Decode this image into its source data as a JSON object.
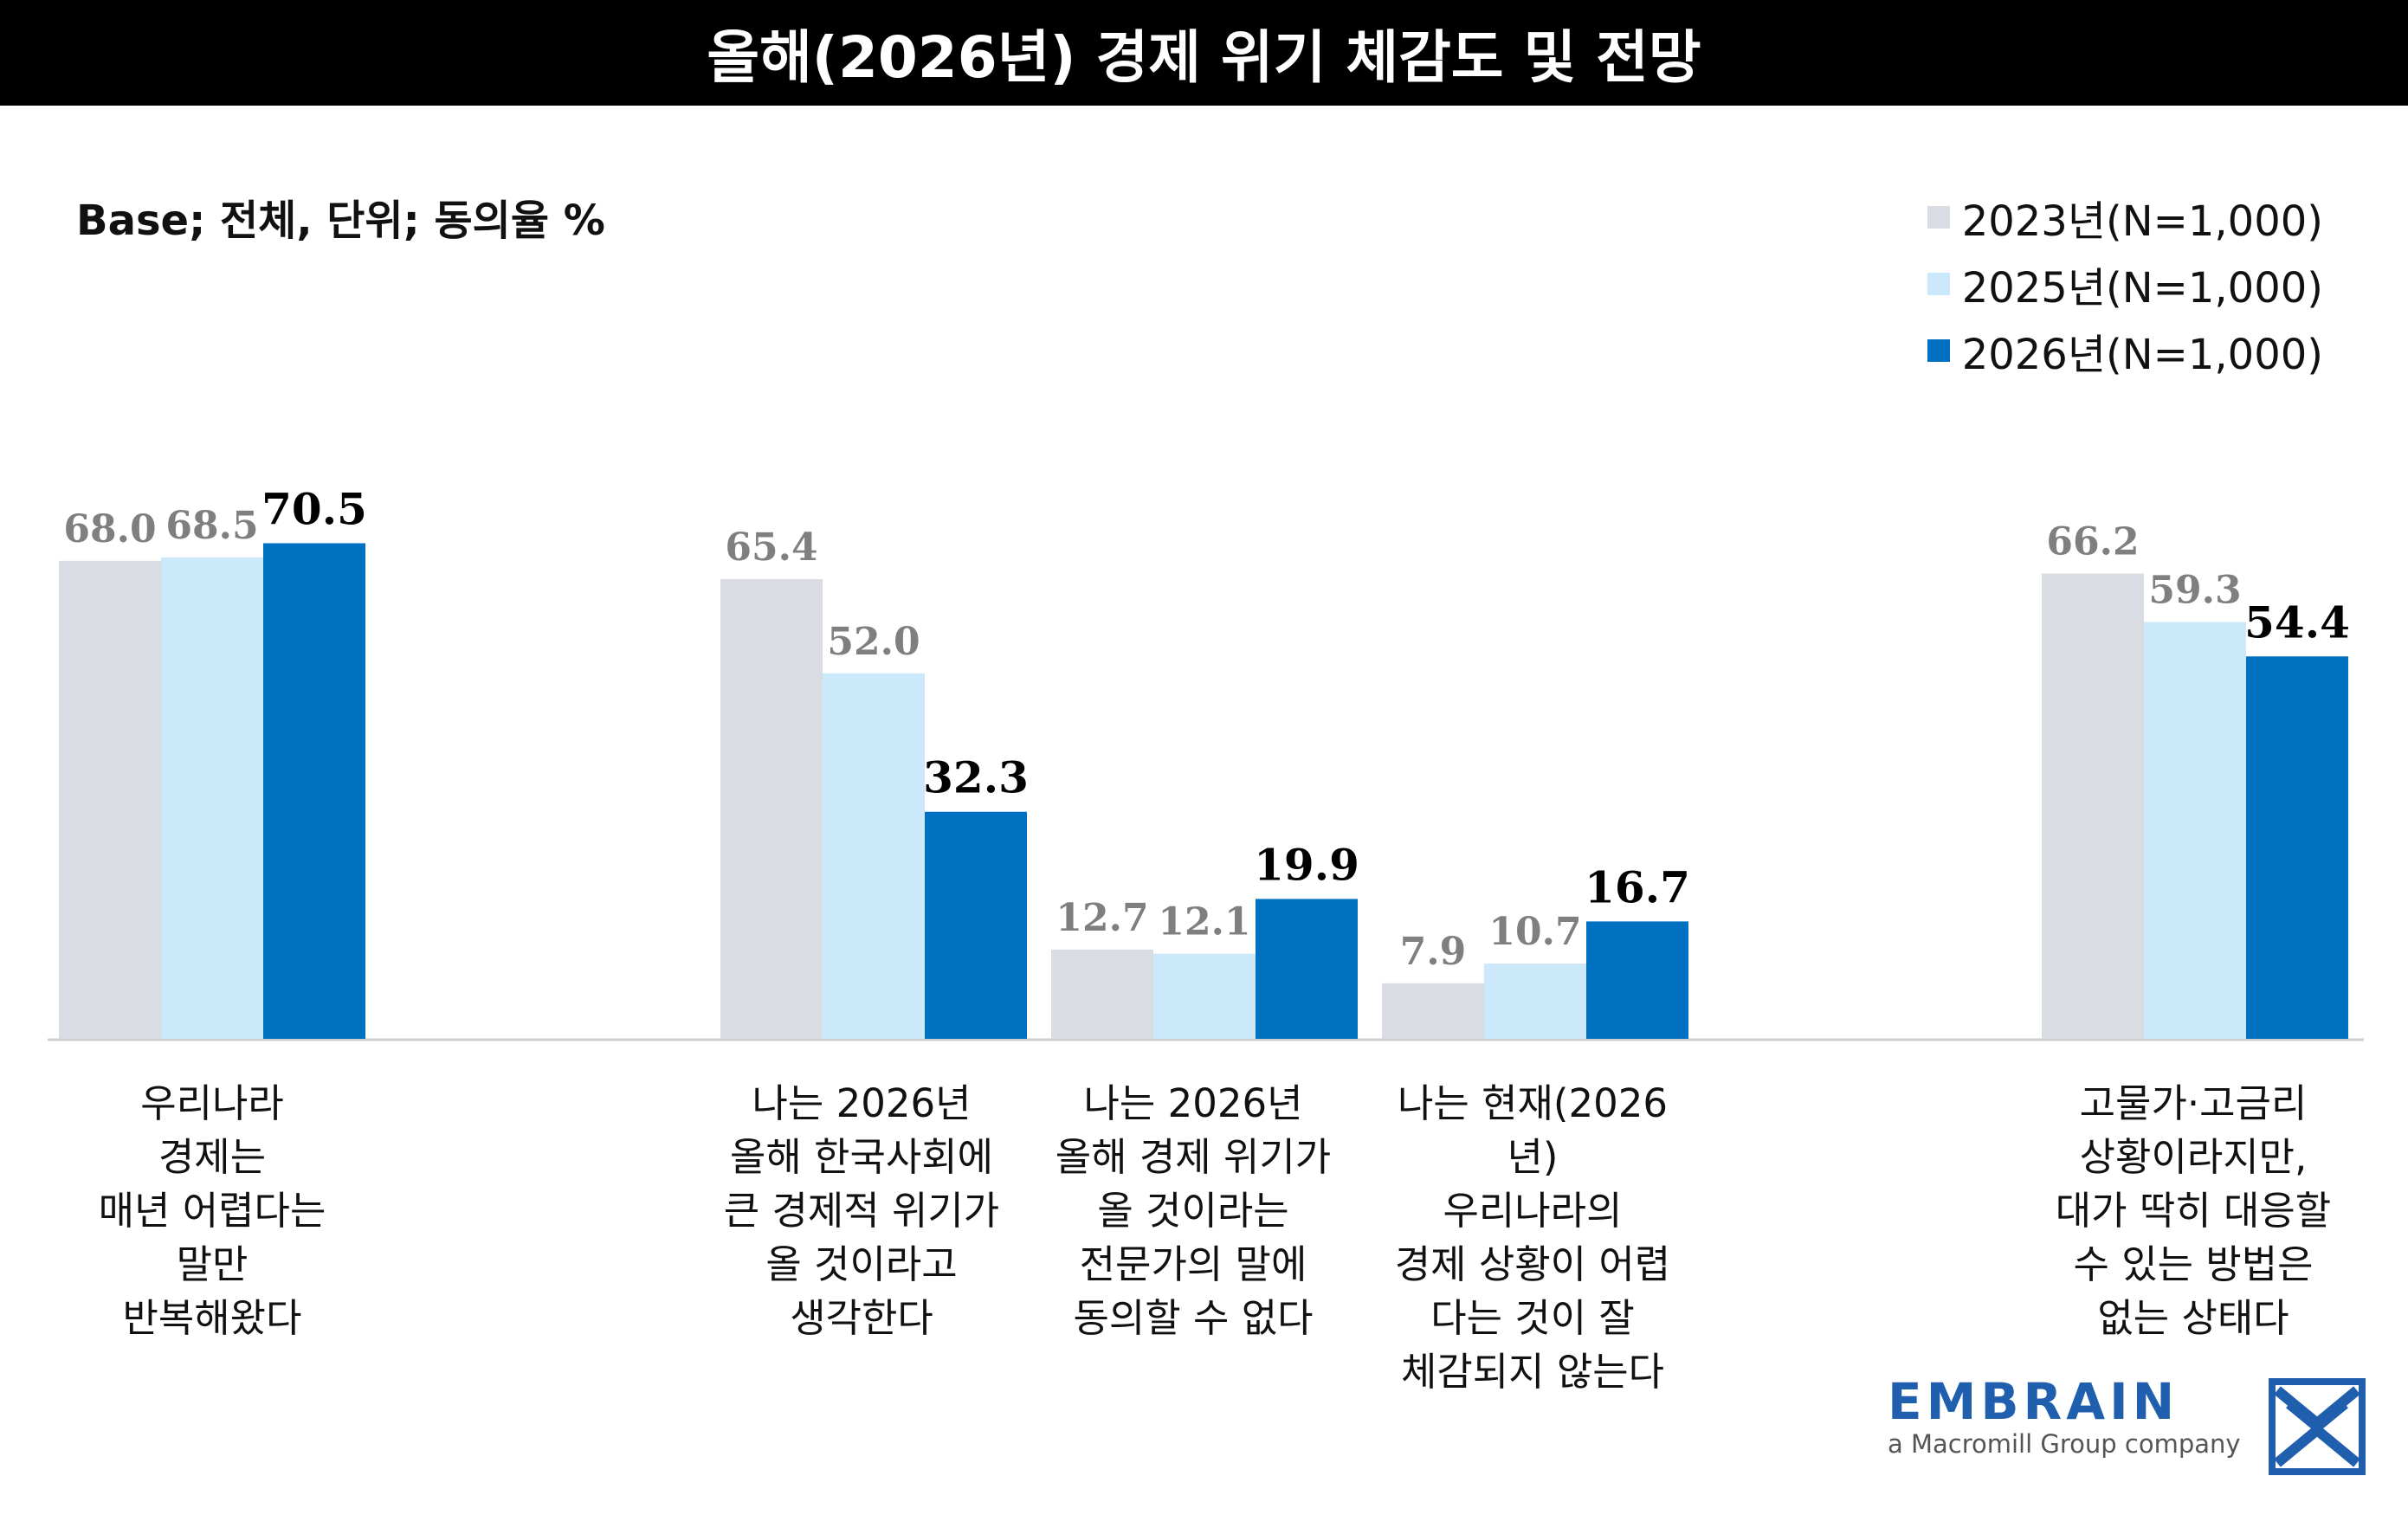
{
  "title": "올해(2026년) 경제 위기 체감도 및 전망",
  "base_note": "Base; 전체, 단위; 동의율 %",
  "colors": {
    "s2023": "#d9dde3",
    "s2025": "#cce8fb",
    "s2026": "#0070c0",
    "label_gray": "#7f7f7f",
    "label_bold": "#000000"
  },
  "chart_data": {
    "type": "bar",
    "title": "올해(2026년) 경제 위기 체감도 및 전망",
    "ylabel": "동의율 %",
    "ylim": [
      0,
      100
    ],
    "grid": false,
    "legend_position": "top-right",
    "categories": [
      "우리나라\n경제는\n매년 어렵다는\n말만\n반복해왔다",
      "나는 2026년\n올해 한국사회에\n큰 경제적 위기가\n올 것이라고\n생각한다",
      "나는 2026년\n올해 경제 위기가\n올 것이라는\n전문가의 말에\n동의할 수 없다",
      "나는 현재(2026년)\n우리나라의\n경제 상황이 어렵\n다는 것이 잘\n체감되지 않는다",
      "고물가·고금리\n상황이라지만,\n대가 딱히 대응할\n수 있는 방법은\n없는 상태다"
    ],
    "series": [
      {
        "name": "2023년(N=1,000)",
        "values": [
          68.0,
          65.4,
          12.7,
          7.9,
          66.2
        ],
        "labels": [
          "68.0",
          "65.4",
          "12.7",
          "7.9",
          "66.2"
        ]
      },
      {
        "name": "2025년(N=1,000)",
        "values": [
          68.5,
          52.0,
          12.1,
          10.7,
          59.3
        ],
        "labels": [
          "68.5",
          "52.0",
          "12.1",
          "10.7",
          "59.3"
        ]
      },
      {
        "name": "2026년(N=1,000)",
        "values": [
          70.5,
          32.3,
          19.9,
          16.7,
          54.4
        ],
        "labels": [
          "70.5",
          "32.3",
          "19.9",
          "16.7",
          "54.4"
        ]
      }
    ]
  },
  "logo": {
    "brand": "EMBRAIN",
    "sub": "a Macromill Group company",
    "icon": "embrain-logo-icon"
  }
}
